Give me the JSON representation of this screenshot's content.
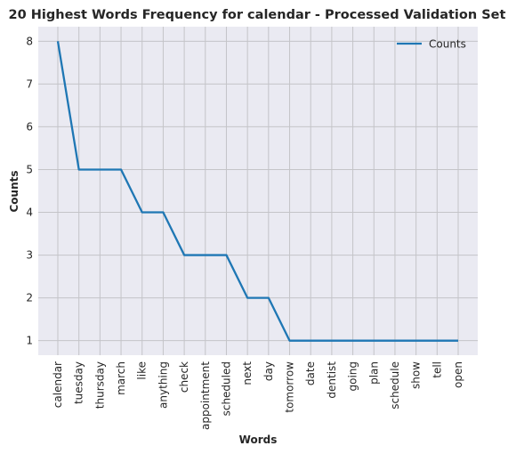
{
  "chart_data": {
    "type": "line",
    "title": "20 Highest Words Frequency for calendar - Processed Validation Set",
    "xlabel": "Words",
    "ylabel": "Counts",
    "categories": [
      "calendar",
      "tuesday",
      "thursday",
      "march",
      "like",
      "anything",
      "check",
      "appointment",
      "scheduled",
      "next",
      "day",
      "tomorrow",
      "date",
      "dentist",
      "going",
      "plan",
      "schedule",
      "show",
      "tell",
      "open"
    ],
    "series": [
      {
        "name": "Counts",
        "values": [
          8,
          5,
          5,
          5,
          4,
          4,
          3,
          3,
          3,
          2,
          2,
          1,
          1,
          1,
          1,
          1,
          1,
          1,
          1,
          1
        ]
      }
    ],
    "ylim": [
      0.66,
      8.34
    ],
    "yticks": [
      1,
      2,
      3,
      4,
      5,
      6,
      7,
      8
    ],
    "grid": true,
    "legend": "top-right",
    "colors": {
      "line": "#1f77b4",
      "background": "#eaeaf2",
      "grid": "#c4c4c8"
    }
  }
}
